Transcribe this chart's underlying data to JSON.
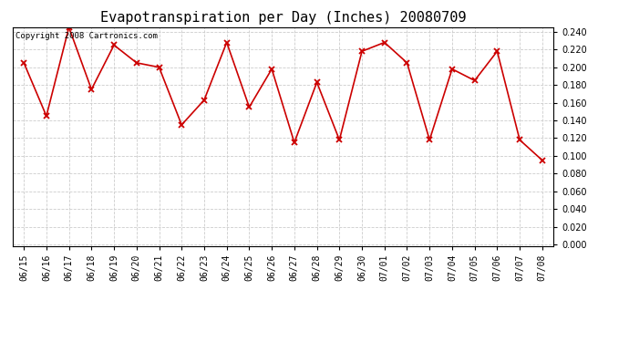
{
  "title": "Evapotranspiration per Day (Inches) 20080709",
  "copyright_text": "Copyright 2008 Cartronics.com",
  "x_labels": [
    "06/15",
    "06/16",
    "06/17",
    "06/18",
    "06/19",
    "06/20",
    "06/21",
    "06/22",
    "06/23",
    "06/24",
    "06/25",
    "06/26",
    "06/27",
    "06/28",
    "06/29",
    "06/30",
    "07/01",
    "07/02",
    "07/03",
    "07/04",
    "07/05",
    "07/06",
    "07/07",
    "07/08"
  ],
  "y_values": [
    0.205,
    0.145,
    0.245,
    0.175,
    0.225,
    0.205,
    0.2,
    0.135,
    0.163,
    0.228,
    0.155,
    0.198,
    0.115,
    0.183,
    0.118,
    0.218,
    0.228,
    0.205,
    0.118,
    0.198,
    0.185,
    0.218,
    0.118,
    0.095
  ],
  "line_color": "#cc0000",
  "marker": "x",
  "marker_size": 4,
  "line_width": 1.2,
  "ylim_min": 0.0,
  "ylim_max": 0.24,
  "ytick_step": 0.02,
  "background_color": "#ffffff",
  "plot_bg_color": "#ffffff",
  "grid_color": "#cccccc",
  "title_fontsize": 11,
  "tick_fontsize": 7,
  "copyright_fontsize": 6.5
}
